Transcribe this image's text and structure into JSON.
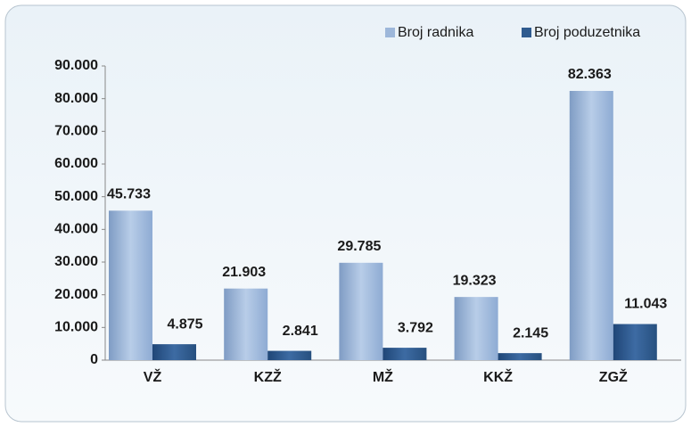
{
  "chart_data": {
    "type": "bar",
    "categories": [
      "VŽ",
      "KZŽ",
      "MŽ",
      "KKŽ",
      "ZGŽ"
    ],
    "series": [
      {
        "name": "Broj radnika",
        "color": "#9db7da",
        "values": [
          45733,
          21903,
          29785,
          19323,
          82363
        ],
        "value_labels": [
          "45.733",
          "21.903",
          "29.785",
          "19.323",
          "82.363"
        ]
      },
      {
        "name": "Broj poduzetnika",
        "color": "#2f5b8f",
        "values": [
          4875,
          2841,
          3792,
          2145,
          11043
        ],
        "value_labels": [
          "4.875",
          "2.841",
          "3.792",
          "2.145",
          "11.043"
        ]
      }
    ],
    "ylim": [
      0,
      90000
    ],
    "yticks": [
      0,
      {
        "value": 10000,
        "label": "10.000"
      },
      {
        "value": 20000,
        "label": "20.000"
      },
      {
        "value": 30000,
        "label": "30.000"
      },
      {
        "value": 40000,
        "label": "40.000"
      },
      {
        "value": 50000,
        "label": "50.000"
      },
      {
        "value": 60000,
        "label": "60.000"
      },
      {
        "value": 70000,
        "label": "70.000"
      },
      {
        "value": 80000,
        "label": "80.000"
      },
      {
        "value": 90000,
        "label": "90.000"
      }
    ],
    "legend": "top-right"
  }
}
